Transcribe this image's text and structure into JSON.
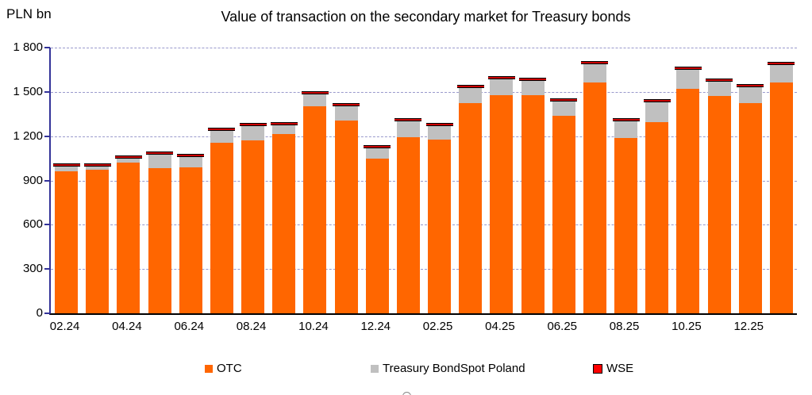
{
  "header": {
    "y_axis_unit": "PLN bn",
    "title": "Value of transaction on the secondary market for Treasury bonds"
  },
  "chart_data": {
    "type": "bar",
    "stacked": true,
    "title": "Value of transaction on the secondary market for Treasury bonds",
    "ylabel": "PLN bn",
    "xlabel": "",
    "ylim": [
      0,
      1800
    ],
    "y_ticks": [
      0,
      300,
      600,
      900,
      1200,
      1500,
      1800
    ],
    "y_tick_labels": [
      "0",
      "300",
      "600",
      "900",
      "1 200",
      "1 500",
      "1 800"
    ],
    "grid": {
      "style": "dashed",
      "color": "#9999CC",
      "horizontal": true
    },
    "axis_colors": {
      "y_axis": "#333399",
      "x_axis": "#000000"
    },
    "legend_position": "bottom",
    "categories": [
      "02.24",
      "03.24",
      "04.24",
      "05.24",
      "06.24",
      "07.24",
      "08.24",
      "09.24",
      "10.24",
      "11.24",
      "12.24",
      "01.25",
      "02.25",
      "03.25",
      "04.25",
      "05.25",
      "06.25",
      "07.25",
      "08.25",
      "09.25",
      "10.25",
      "11.25",
      "12.25",
      "01.26"
    ],
    "x_tick_labels_shown": [
      "02.24",
      "04.24",
      "06.24",
      "08.24",
      "10.24",
      "12.24",
      "02.25",
      "04.25",
      "06.25",
      "08.25",
      "10.25",
      "12.25"
    ],
    "series": [
      {
        "name": "OTC",
        "color": "#FF6600",
        "values": [
          960,
          970,
          1020,
          985,
          990,
          1155,
          1170,
          1215,
          1405,
          1305,
          1050,
          1195,
          1175,
          1425,
          1480,
          1480,
          1340,
          1565,
          1190,
          1295,
          1520,
          1470,
          1425,
          1565
        ]
      },
      {
        "name": "Treasury BondSpot Poland",
        "color": "#C0C0C0",
        "values": [
          35,
          25,
          30,
          90,
          70,
          80,
          100,
          60,
          80,
          95,
          70,
          105,
          95,
          100,
          105,
          95,
          95,
          120,
          110,
          135,
          130,
          100,
          105,
          115
        ]
      },
      {
        "name": "WSE",
        "color": "#FF0000",
        "border_color": "#000000",
        "values": [
          5,
          5,
          5,
          5,
          5,
          5,
          5,
          5,
          5,
          5,
          5,
          5,
          5,
          5,
          5,
          5,
          5,
          5,
          5,
          5,
          5,
          5,
          5,
          5
        ]
      }
    ]
  },
  "legend": {
    "items": [
      {
        "label": "OTC",
        "color": "#FF6600",
        "border": "none"
      },
      {
        "label": "Treasury BondSpot Poland",
        "color": "#C0C0C0",
        "border": "none"
      },
      {
        "label": "WSE",
        "color": "#FF0000",
        "border": "#000000"
      }
    ]
  }
}
